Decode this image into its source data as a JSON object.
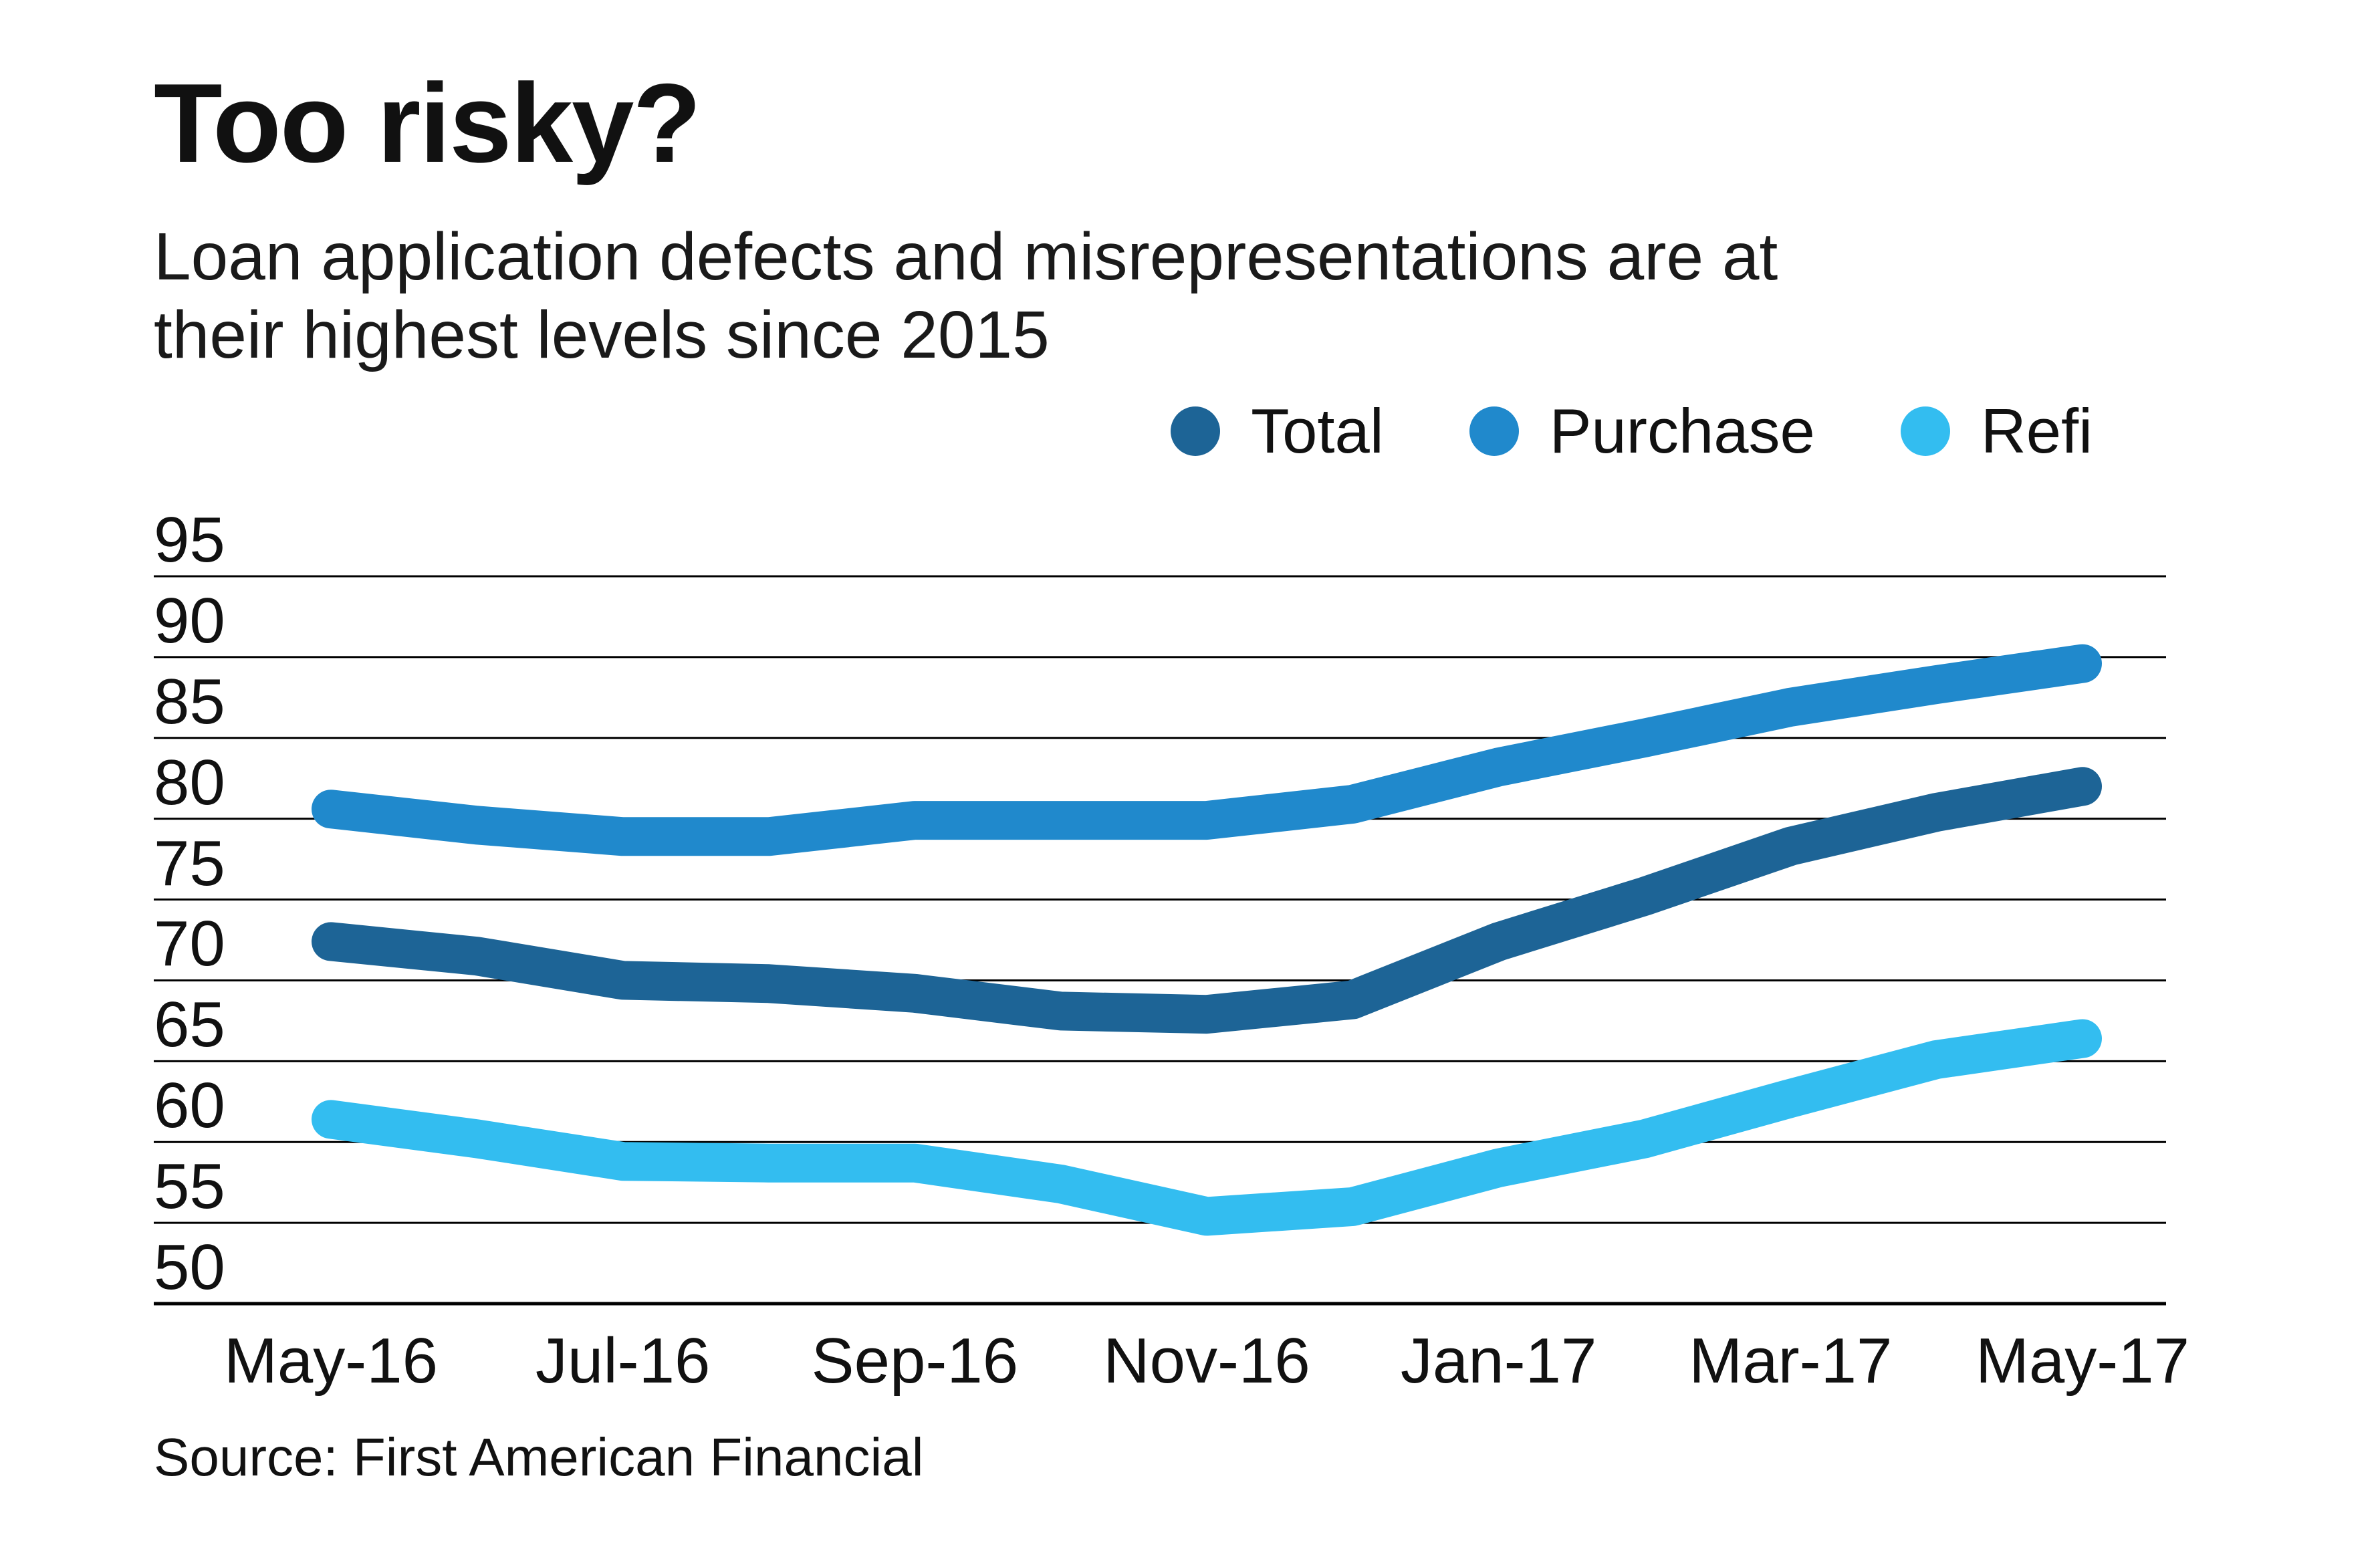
{
  "header": {
    "title": "Too risky?",
    "subtitle_line1": "Loan application defects and misrepresentations are at",
    "subtitle_line2": "their highest levels since 2015"
  },
  "legend": {
    "items": [
      {
        "label": "Total",
        "color": "#1d6496"
      },
      {
        "label": "Purchase",
        "color": "#2089cc"
      },
      {
        "label": "Refi",
        "color": "#33bdf0"
      }
    ]
  },
  "source": "Source: First American Financial",
  "chart_data": {
    "type": "line",
    "title": "Too risky?",
    "subtitle": "Loan application defects and misrepresentations are at their highest levels since 2015",
    "x": [
      "May-16",
      "Jun-16",
      "Jul-16",
      "Aug-16",
      "Sep-16",
      "Oct-16",
      "Nov-16",
      "Dec-16",
      "Jan-17",
      "Feb-17",
      "Mar-17",
      "Apr-17",
      "May-17"
    ],
    "x_axis_labels_shown": [
      "May-16",
      "Jul-16",
      "Sep-16",
      "Nov-16",
      "Jan-17",
      "Mar-17",
      "May-17"
    ],
    "series": [
      {
        "name": "Total",
        "color": "#1d6496",
        "values": [
          72.4,
          71.5,
          70.0,
          69.8,
          69.2,
          68.1,
          67.9,
          68.8,
          72.4,
          75.2,
          78.3,
          80.4,
          82.0
        ]
      },
      {
        "name": "Purchase",
        "color": "#2089cc",
        "values": [
          80.6,
          79.6,
          78.9,
          78.9,
          79.9,
          79.9,
          79.9,
          80.9,
          83.2,
          85.0,
          86.9,
          88.3,
          89.6
        ]
      },
      {
        "name": "Refi",
        "color": "#33bdf0",
        "values": [
          61.4,
          60.2,
          58.8,
          58.7,
          58.7,
          57.4,
          55.4,
          56.0,
          58.4,
          60.2,
          62.7,
          65.1,
          66.4
        ]
      }
    ],
    "ylim": [
      50,
      95
    ],
    "y_ticks": [
      95,
      90,
      85,
      80,
      75,
      70,
      65,
      60,
      55,
      50
    ],
    "grid": "horizontal",
    "gridline_color": "#000000",
    "legend_position": "top-right",
    "source": "Source: First American Financial"
  }
}
